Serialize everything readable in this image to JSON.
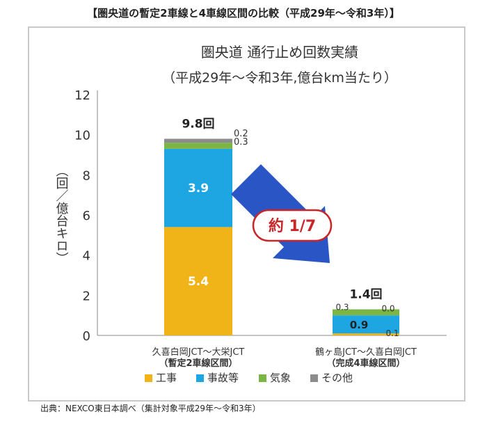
{
  "header": {
    "title": "【圏央道の暫定2車線と4車線区間の比較（平成29年～令和3年）】",
    "source": "出典：NEXCO東日本調べ（集計対象平成29年～令和3年）"
  },
  "chart_data": {
    "type": "bar",
    "stacked": true,
    "title": "圏央道 通行止め回数実績",
    "subtitle": "（平成29年～令和3年,億台km当たり）",
    "ylabel": "（回／億台キロ）",
    "ylim": [
      0,
      12
    ],
    "yticks": [
      "0",
      "2",
      "4",
      "6",
      "8",
      "10",
      "12"
    ],
    "categories": [
      {
        "line1": "久喜白岡JCT～大栄JCT",
        "line2": "（暫定2車線区間）"
      },
      {
        "line1": "鶴ヶ島JCT～久喜白岡JCT",
        "line2": "（完成4車線区間）"
      }
    ],
    "totals": [
      "9.8回",
      "1.4回"
    ],
    "series": [
      {
        "name": "工事",
        "color": "#f0b418",
        "values": [
          5.4,
          0.1
        ],
        "labels": [
          "5.4",
          "0.1"
        ]
      },
      {
        "name": "事故等",
        "color": "#1ea6e3",
        "values": [
          3.9,
          0.9
        ],
        "labels": [
          "3.9",
          "0.9"
        ]
      },
      {
        "name": "気象",
        "color": "#7bb543",
        "values": [
          0.3,
          0.3
        ],
        "labels": [
          "0.3",
          "0.3"
        ]
      },
      {
        "name": "その他",
        "color": "#8c8c8c",
        "values": [
          0.2,
          0.0
        ],
        "labels": [
          "0.2",
          "0.0"
        ]
      }
    ],
    "annotation": {
      "text": "約 1/7",
      "arrow_color": "#2a55c5"
    },
    "legend_position": "bottom",
    "grid": false
  }
}
